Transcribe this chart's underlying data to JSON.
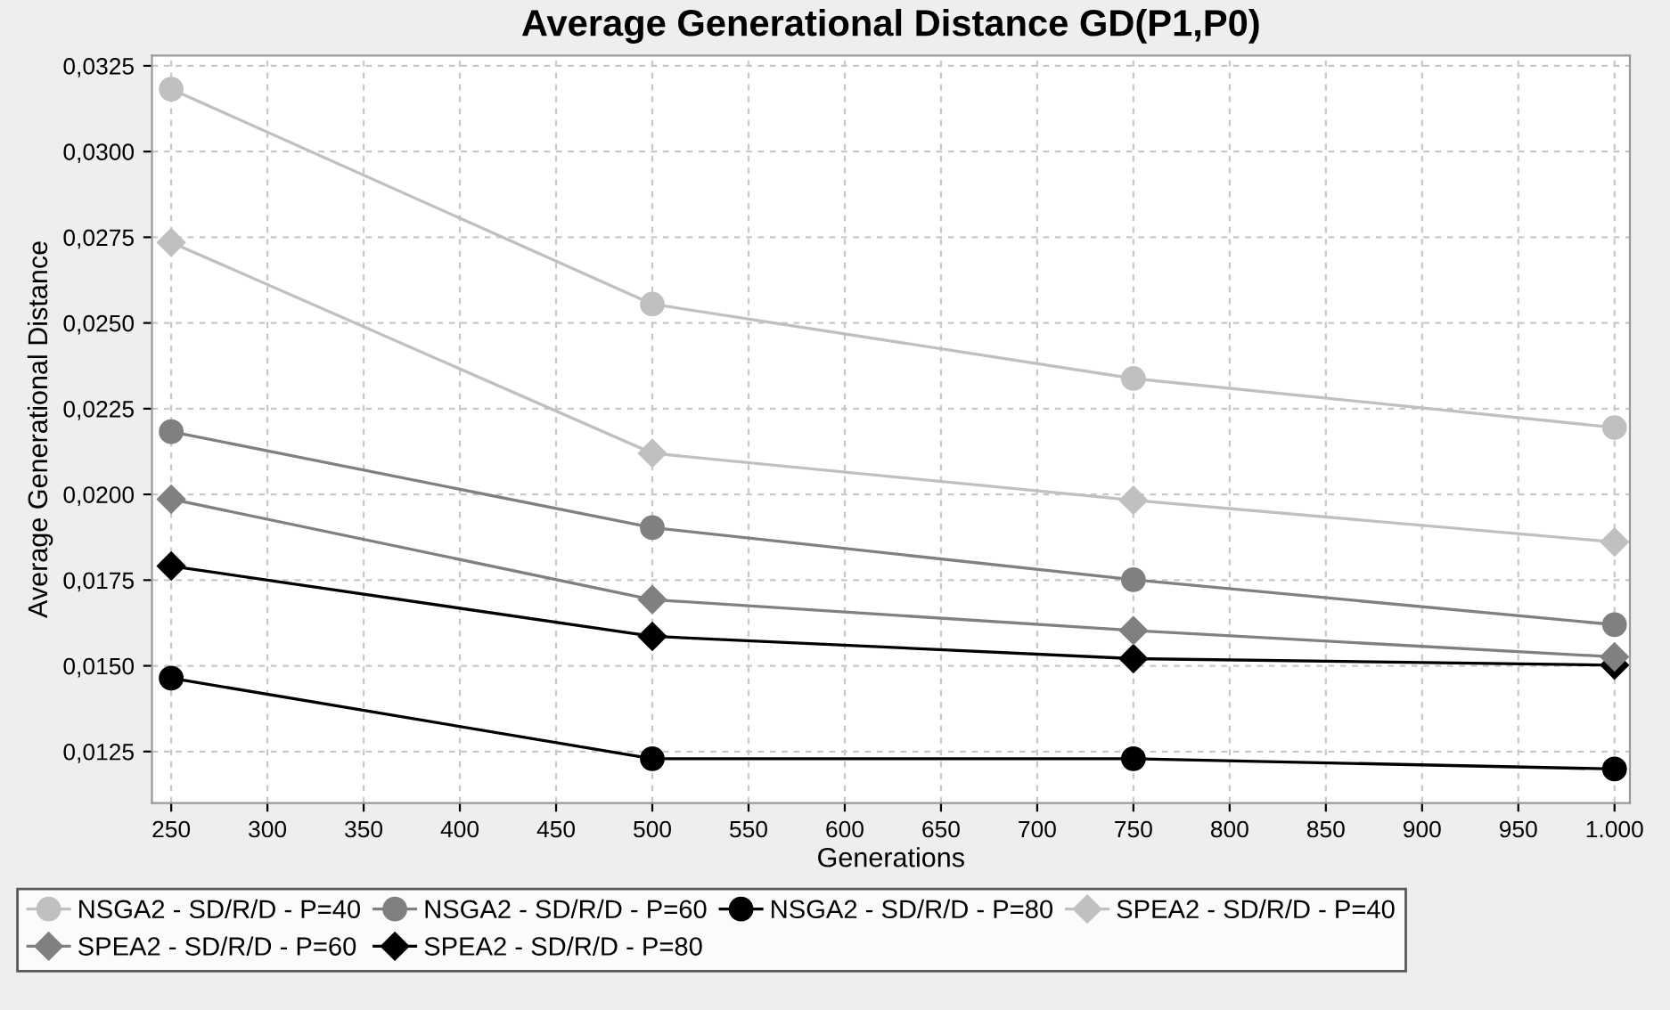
{
  "chart_data": {
    "type": "line",
    "title": "Average Generational Distance GD(P1,P0)",
    "xlabel": "Generations",
    "ylabel": "Average Generational Distance",
    "x": [
      250,
      500,
      750,
      1000
    ],
    "series": [
      {
        "name": "NSGA2 - SD/R/D - P=40",
        "color": "#c0c0c0",
        "marker": "circle",
        "values": [
          0.03182,
          0.02555,
          0.02338,
          0.02195
        ]
      },
      {
        "name": "NSGA2 - SD/R/D - P=60",
        "color": "#808080",
        "marker": "circle",
        "values": [
          0.02183,
          0.01903,
          0.01751,
          0.0162
        ]
      },
      {
        "name": "NSGA2 - SD/R/D - P=80",
        "color": "#000000",
        "marker": "circle",
        "values": [
          0.01464,
          0.01229,
          0.01229,
          0.01199
        ]
      },
      {
        "name": "SPEA2 - SD/R/D - P=40",
        "color": "#c0c0c0",
        "marker": "diamond",
        "values": [
          0.02735,
          0.0212,
          0.01983,
          0.01861
        ]
      },
      {
        "name": "SPEA2 - SD/R/D - P=60",
        "color": "#808080",
        "marker": "diamond",
        "values": [
          0.01986,
          0.01693,
          0.01603,
          0.01526
        ]
      },
      {
        "name": "SPEA2 - SD/R/D - P=80",
        "color": "#000000",
        "marker": "diamond",
        "values": [
          0.01791,
          0.01586,
          0.01521,
          0.01502
        ]
      }
    ],
    "xlim": [
      240,
      1008
    ],
    "ylim": [
      0.011,
      0.0328
    ],
    "xticks": [
      250,
      300,
      350,
      400,
      450,
      500,
      550,
      600,
      650,
      700,
      750,
      800,
      850,
      900,
      950,
      {
        "value": 1000,
        "label": "1.000"
      }
    ],
    "yticks": [
      {
        "value": 0.0125,
        "label": "0,0125"
      },
      {
        "value": 0.015,
        "label": "0,0150"
      },
      {
        "value": 0.0175,
        "label": "0,0175"
      },
      {
        "value": 0.02,
        "label": "0,0200"
      },
      {
        "value": 0.0225,
        "label": "0,0225"
      },
      {
        "value": 0.025,
        "label": "0,0250"
      },
      {
        "value": 0.0275,
        "label": "0,0275"
      },
      {
        "value": 0.03,
        "label": "0,0300"
      },
      {
        "value": 0.0325,
        "label": "0,0325"
      }
    ],
    "grid": true,
    "legend": "bottom",
    "line_style": "solid"
  }
}
